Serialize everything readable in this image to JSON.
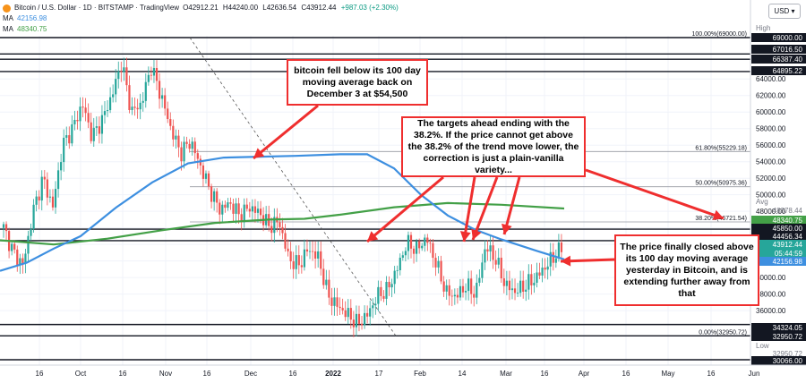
{
  "header": {
    "symbol": "Bitcoin / U.S. Dollar · 1D · BITSTAMP · TradingView",
    "ohlc": {
      "open": "O42912.21",
      "high": "H44240.00",
      "low": "L42636.54",
      "close": "C43912.44",
      "change": "+987.03 (+2.30%)"
    },
    "ma1_label": "MA",
    "ma1_value": "42156.98",
    "ma2_label": "MA",
    "ma2_value": "48340.75",
    "currency": "USD"
  },
  "colors": {
    "up": "#26a69a",
    "down": "#ef5350",
    "ma100": "#3d8fe0",
    "ma200": "#43a047",
    "annotation": "#ef2e2e",
    "level_line": "#131722",
    "dark_tag": "#131722"
  },
  "chart_data": {
    "type": "candlestick",
    "title": "Bitcoin / U.S. Dollar",
    "ylim": [
      30066,
      70000
    ],
    "x_ticks": [
      "16",
      "Oct",
      "16",
      "Nov",
      "16",
      "Dec",
      "16",
      "2022",
      "17",
      "Feb",
      "14",
      "Mar",
      "16",
      "Apr",
      "16",
      "May",
      "16",
      "Jun"
    ],
    "y_ticks": [
      36000,
      38000,
      40000,
      42000,
      44000,
      46000,
      48000,
      50000,
      52000,
      54000,
      56000,
      58000,
      60000,
      62000,
      64000
    ],
    "horizontal_levels": [
      69000.0,
      67016.5,
      66387.4,
      64895.22,
      45850.0,
      44456.34,
      34324.05,
      32950.72,
      30066.0
    ],
    "fib_levels": [
      {
        "label": "100.00%(69000.00)",
        "value": 69000.0
      },
      {
        "label": "61.80%(55229.18)",
        "value": 55229.18
      },
      {
        "label": "50.00%(50975.36)",
        "value": 50975.36
      },
      {
        "label": "38.20%(46721.54)",
        "value": 46721.54
      },
      {
        "label": "0.00%(32950.72)",
        "value": 32950.72
      }
    ],
    "price_tags": [
      {
        "text": "High",
        "style": "plain"
      },
      {
        "text": "69000.00",
        "style": "dark"
      },
      {
        "text": "67016.50",
        "style": "dark"
      },
      {
        "text": "66387.40",
        "style": "dark"
      },
      {
        "text": "64895.22",
        "style": "dark"
      },
      {
        "text": "Avg",
        "style": "plain"
      },
      {
        "text": "48378.44",
        "style": "plain"
      },
      {
        "text": "48340.75",
        "style": "green"
      },
      {
        "text": "45850.00",
        "style": "dark"
      },
      {
        "text": "44456.34",
        "style": "dark"
      },
      {
        "text": "43912.44",
        "style": "teal"
      },
      {
        "text": "05:44:59",
        "style": "teal"
      },
      {
        "text": "42156.98",
        "style": "blue"
      },
      {
        "text": "34324.05",
        "style": "dark"
      },
      {
        "text": "32950.72",
        "style": "dark"
      },
      {
        "text": "Low",
        "style": "plain"
      },
      {
        "text": "32950.72",
        "style": "plain"
      },
      {
        "text": "30066.00",
        "style": "dark"
      }
    ],
    "series": [
      {
        "name": "MA",
        "value": 42156.98
      },
      {
        "name": "MA",
        "value": 48340.75
      }
    ],
    "annotations": [
      {
        "text": "bitcoin fell below its 100 day moving average back on December 3 at $54,500"
      },
      {
        "text": "The targets ahead ending with the 38.2%. If the price cannot get above the 38.2% of the trend move lower, the correction is just a plain-vanilla variety..."
      },
      {
        "text": "The price finally closed above its 100 day moving average yesterday in Bitcoin, and is extending further away from that"
      }
    ]
  }
}
